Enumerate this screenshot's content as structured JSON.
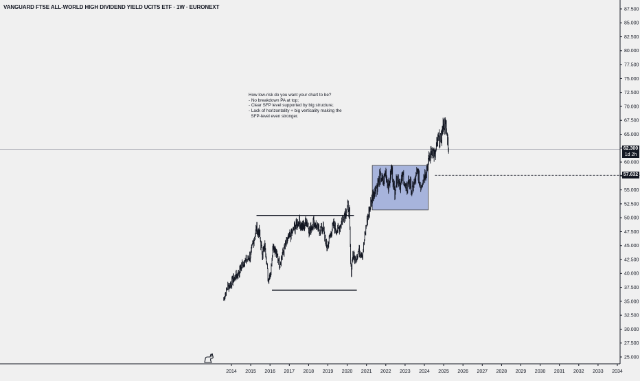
{
  "chart_data": {
    "type": "candlestick",
    "title": "VANGUARD FTSE ALL-WORLD HIGH DIVIDEND YIELD UCITS ETF · 1W · EURONEXT",
    "x_ticks": [
      "2014",
      "2015",
      "2016",
      "2017",
      "2018",
      "2019",
      "2020",
      "2021",
      "2022",
      "2023",
      "2024",
      "2025",
      "2026",
      "2027",
      "2028",
      "2029",
      "2030",
      "2031",
      "2032",
      "2033",
      "2034"
    ],
    "y_ticks": [
      "87.500",
      "85.000",
      "82.500",
      "80.000",
      "77.500",
      "75.000",
      "72.500",
      "70.000",
      "67.500",
      "65.000",
      "62.500",
      "60.000",
      "57.500",
      "55.000",
      "52.500",
      "50.000",
      "47.500",
      "45.000",
      "42.500",
      "40.000",
      "37.500",
      "35.000",
      "32.500",
      "30.000",
      "27.500",
      "25.000"
    ],
    "ylim": [
      23.5,
      89
    ],
    "xlim": [
      2013.1,
      2034.3
    ],
    "series": [
      {
        "values_note_free": true,
        "x": [
          2013.6,
          2013.8,
          2014.0,
          2014.2,
          2014.4,
          2014.6,
          2014.8,
          2015.0,
          2015.15,
          2015.3,
          2015.45,
          2015.6,
          2015.75,
          2015.9,
          2016.05,
          2016.15,
          2016.3,
          2016.5,
          2016.7,
          2016.9,
          2017.1,
          2017.3,
          2017.5,
          2017.7,
          2017.9,
          2018.05,
          2018.25,
          2018.5,
          2018.75,
          2018.95,
          2019.1,
          2019.3,
          2019.5,
          2019.7,
          2019.9,
          2020.05,
          2020.12,
          2020.18,
          2020.22,
          2020.28,
          2020.4,
          2020.6,
          2020.8,
          2021.0,
          2021.2,
          2021.4,
          2021.55,
          2021.7,
          2021.85,
          2022.0,
          2022.15,
          2022.3,
          2022.45,
          2022.6,
          2022.75,
          2022.9,
          2023.05,
          2023.2,
          2023.35,
          2023.5,
          2023.65,
          2023.8,
          2023.95,
          2024.1,
          2024.25,
          2024.4,
          2024.55,
          2024.7,
          2024.85,
          2025.0,
          2025.1,
          2025.2,
          2025.27
        ],
        "close": [
          35.4,
          37.6,
          38.3,
          39.4,
          40.3,
          42.0,
          42.4,
          43.2,
          45.9,
          48.1,
          47.1,
          43.5,
          45.0,
          39.0,
          40.5,
          45.3,
          43.8,
          41.8,
          44.0,
          46.0,
          47.0,
          48.5,
          49.4,
          48.2,
          49.6,
          47.5,
          49.3,
          47.8,
          48.2,
          44.5,
          46.6,
          48.8,
          47.6,
          49.2,
          51.0,
          52.2,
          50.5,
          41.1,
          40.3,
          43.6,
          42.5,
          44.0,
          43.6,
          49.0,
          52.3,
          54.9,
          55.6,
          57.4,
          56.3,
          58.2,
          55.6,
          58.8,
          54.6,
          57.5,
          55.9,
          57.6,
          54.6,
          56.8,
          54.8,
          56.4,
          58.3,
          55.6,
          57.2,
          58.6,
          60.5,
          62.4,
          60.9,
          64.1,
          63.9,
          67.1,
          66.4,
          64.2,
          62.3
        ]
      }
    ],
    "annotation": {
      "lines": [
        "How low-risk do you want your chart to be?",
        "",
        "- No breakdown PA at top;",
        "- Clear SFP level supported by big structure;",
        "- Lack of horizontality + big verticality making the",
        "  SFP-level even stronger."
      ]
    },
    "levels": {
      "range_top": 50.4,
      "range_bottom": 37.0,
      "range_x_start": 2015.3,
      "range_x_end": 2020.35,
      "range_bottom_x_start": 2016.1,
      "range_bottom_x_end": 2020.5,
      "box_x_start": 2021.3,
      "box_x_end": 2024.2,
      "box_top": 59.4,
      "box_bottom": 51.4,
      "sfp_level": 57.632,
      "sfp_x_start": 2024.55,
      "current_price": 62.3
    },
    "current_price_label": "62.300",
    "current_countdown_label": "1d 2h",
    "sfp_label": "57.632",
    "colors": {
      "background": "#f0f0f0",
      "candle": "#131722",
      "box_fill": "#a7b4dc",
      "box_stroke": "#3a3a3a",
      "price_tag": "#131722",
      "axis_text": "#131722",
      "axis_line": "#131722"
    },
    "icons": {
      "logo": "tradingview-logo-icon"
    }
  }
}
